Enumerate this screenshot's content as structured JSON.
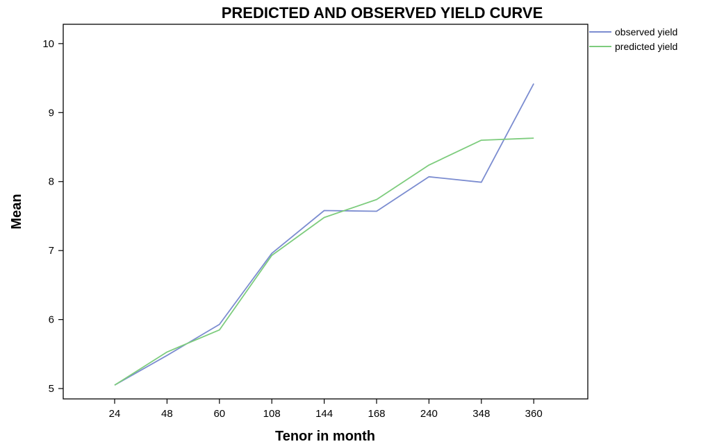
{
  "chart_data": {
    "type": "line",
    "title": "PREDICTED AND OBSERVED YIELD CURVE",
    "xlabel": "Tenor in month",
    "ylabel": "Mean",
    "categories": [
      "24",
      "48",
      "60",
      "108",
      "144",
      "168",
      "240",
      "348",
      "360"
    ],
    "yticks": [
      "5",
      "6",
      "7",
      "8",
      "9",
      "10"
    ],
    "ylim": [
      4.85,
      10.28
    ],
    "grid": false,
    "legend_position": "top-right-outside",
    "series": [
      {
        "name": "observed yield",
        "color": "#7b8cd0",
        "values": [
          5.05,
          5.48,
          5.93,
          6.96,
          7.58,
          7.57,
          8.07,
          7.99,
          9.42
        ]
      },
      {
        "name": "predicted yield",
        "color": "#7dcc7d",
        "values": [
          5.05,
          5.53,
          5.85,
          6.93,
          7.48,
          7.74,
          8.24,
          8.6,
          8.63
        ]
      }
    ]
  }
}
